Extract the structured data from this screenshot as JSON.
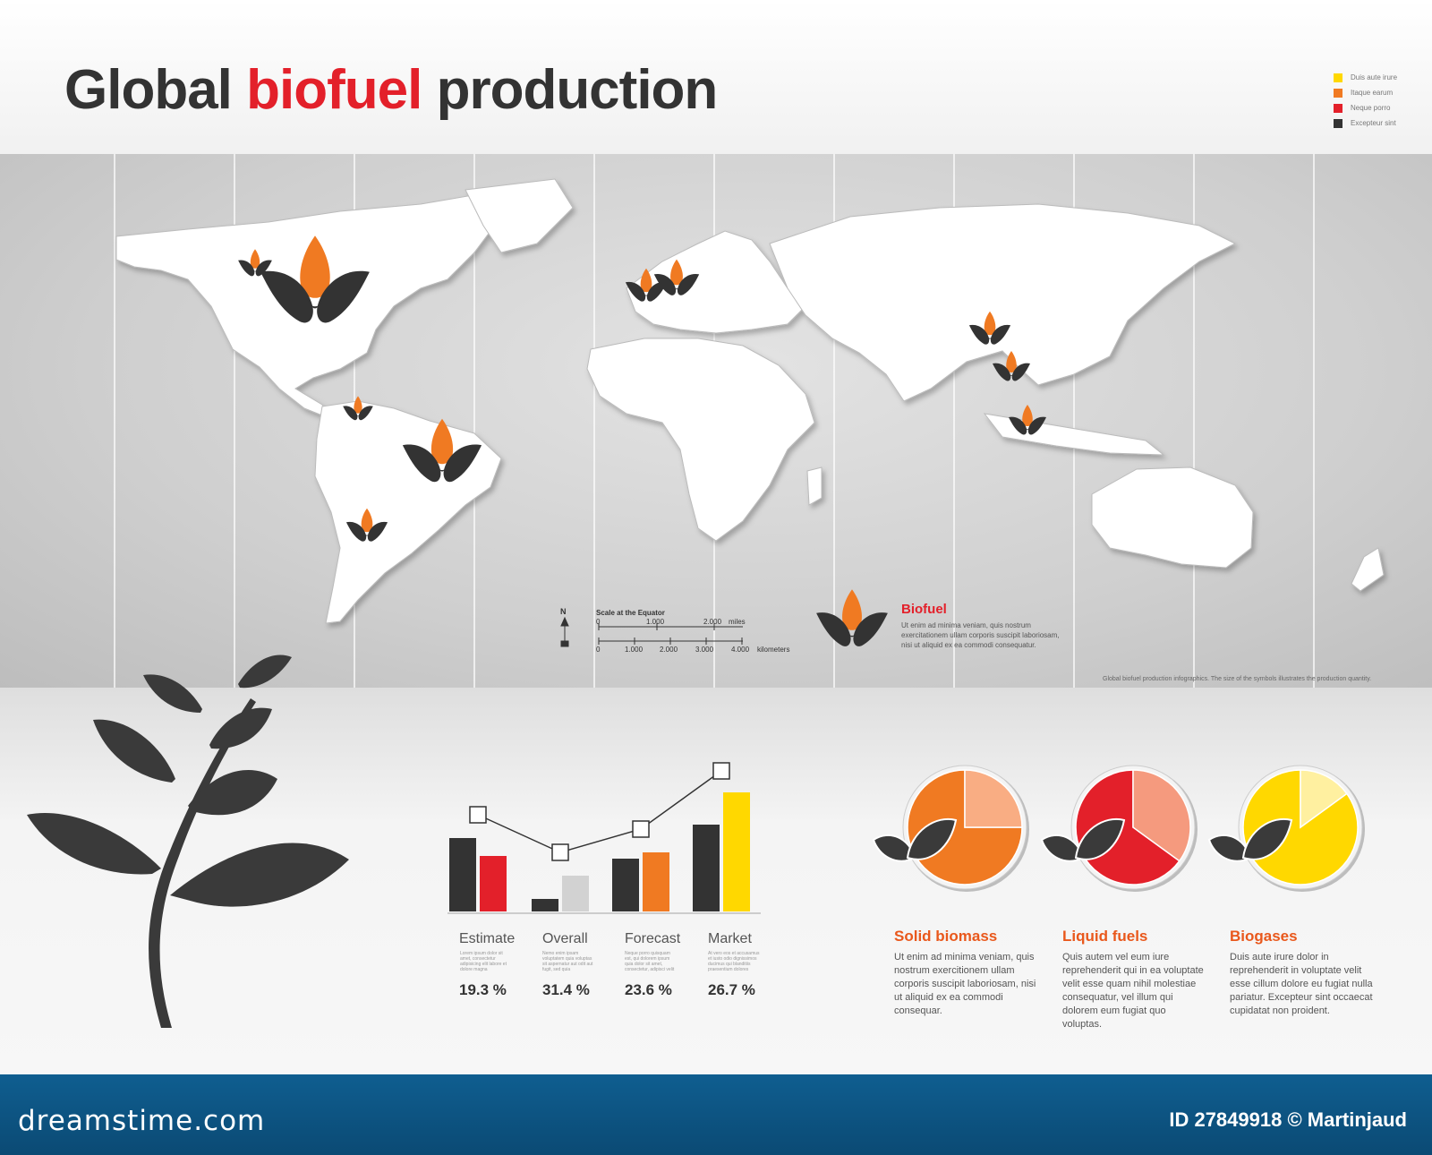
{
  "title": {
    "part1": "Global ",
    "part2": "biofuel",
    "part3": " production"
  },
  "legend": [
    {
      "label": "Duis aute irure",
      "color": "#ffd800"
    },
    {
      "label": "Itaque earum",
      "color": "#f07a22"
    },
    {
      "label": "Neque porro",
      "color": "#e3202a"
    },
    {
      "label": "Excepteur sint",
      "color": "#333333"
    }
  ],
  "map": {
    "caption": "Global biofuel production infographics. The size of the symbols illustrates the production quantity.",
    "north": "N",
    "scale": {
      "label": "Scale at the Equator",
      "miles_ticks": [
        "0",
        "1.000",
        "2.000"
      ],
      "miles_unit": "miles",
      "km_ticks": [
        "0",
        "1.000",
        "2.000",
        "3.000",
        "4.000"
      ],
      "km_unit": "kilometers"
    },
    "biofuel_title": "Biofuel",
    "biofuel_text": "Ut enim ad minima veniam, quis nostrum exercitationem ullam corporis suscipit laboriosam, nisi ut aliquid ex ea commodi consequatur."
  },
  "chart_data": [
    {
      "type": "bar",
      "categories": [
        "Estimate",
        "Overall",
        "Forecast",
        "Market"
      ],
      "series": [
        {
          "color": "#333333",
          "values": [
            82,
            14,
            59,
            97
          ]
        },
        {
          "color": "#e3202a",
          "values": [
            62,
            null,
            null,
            null
          ]
        },
        {
          "color": "#d2d2d2",
          "values": [
            null,
            40,
            null,
            null
          ]
        },
        {
          "color": "#f07a22",
          "values": [
            null,
            null,
            66,
            null
          ]
        },
        {
          "color": "#ffd800",
          "values": [
            null,
            null,
            null,
            133
          ]
        }
      ],
      "line": {
        "values": [
          108,
          66,
          92,
          157
        ]
      },
      "ylim": [
        0,
        160
      ],
      "category_texts": [
        "Lorem ipsum dolor sit amet, consectetur adipisicing elit labore et dolore magna",
        "Nemo enim ipsam voluptatem quia voluptas sit aspernatur aut odit aut fugit, sed quia",
        "Neque porro quisquam est, qui dolorem ipsum quia dolor sit amet, consectetur, adipisci velit",
        "At vero eos et accusamus et iusto odio dignissimos ducimus qui blanditiis praesentium dolores"
      ],
      "percentages": [
        "19.3 %",
        "31.4 %",
        "23.6 %",
        "26.7 %"
      ]
    },
    {
      "type": "pie",
      "pies": [
        {
          "title": "Solid biomass",
          "slices": [
            75,
            25
          ],
          "colors": [
            "#f07a22",
            "#f9ad83"
          ],
          "text": "Ut enim ad minima veniam, quis nostrum exercitionem ullam corporis suscipit laboriosam, nisi ut aliquid ex ea commodi consequar."
        },
        {
          "title": "Liquid fuels",
          "slices": [
            65,
            35
          ],
          "colors": [
            "#e3202a",
            "#f59a7e"
          ],
          "text": "Quis autem vel eum iure reprehenderit qui in ea voluptate velit esse quam nihil molestiae consequatur, vel illum qui dolorem eum fugiat quo voluptas."
        },
        {
          "title": "Biogases",
          "slices": [
            85,
            15
          ],
          "colors": [
            "#ffd800",
            "#fff0a0"
          ],
          "text": "Duis aute irure dolor in reprehenderit in voluptate velit esse cillum dolore eu fugiat nulla pariatur. Excepteur sint occaecat cupidatat non proident."
        }
      ]
    }
  ],
  "footer": {
    "brand": "dreamstime.com",
    "id": "ID 27849918 © Martinjaud"
  },
  "colors": {
    "dark": "#333333",
    "red": "#e3202a",
    "orange": "#f07a22",
    "yellow": "#ffd800",
    "footer": "#0b4a74"
  }
}
